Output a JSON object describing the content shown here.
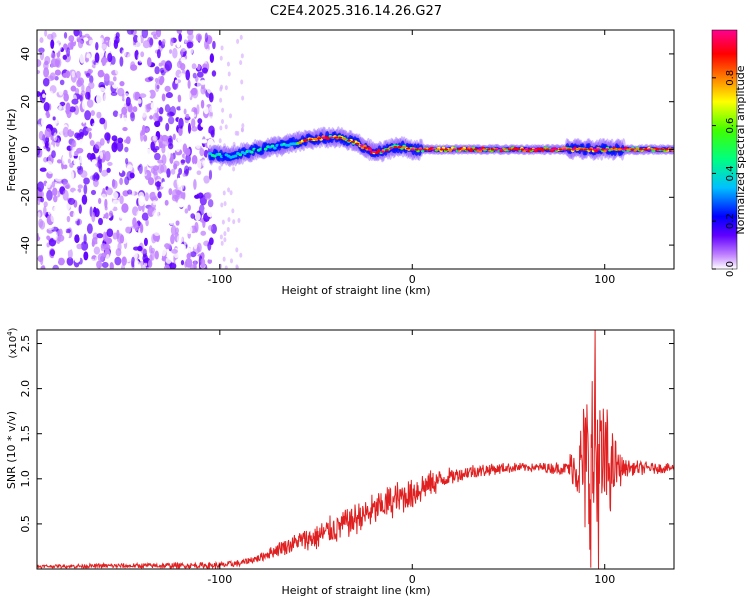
{
  "chart_data": [
    {
      "type": "heatmap",
      "title": "C2E4.2025.316.14.26.G27",
      "xlabel": "Height of straight line (km)",
      "ylabel": "Frequency (Hz)",
      "xlim": [
        -195,
        136
      ],
      "ylim": [
        -50,
        50
      ],
      "xticks": [
        -100,
        0,
        100
      ],
      "xtick_labels": [
        "-100",
        "0",
        "100"
      ],
      "yticks": [
        -40,
        -20,
        0,
        20,
        40
      ],
      "ytick_labels": [
        "-40",
        "-20",
        "0",
        "20",
        "40"
      ],
      "colorbar": {
        "label": "Normalized spectral amplitude",
        "range": [
          0,
          1
        ],
        "ticks": [
          0,
          0.2,
          0.4,
          0.6,
          0.8
        ],
        "tick_labels": [
          "0.0",
          "0.2",
          "0.4",
          "0.6",
          "0.8"
        ],
        "colors": [
          "#ffffff",
          "#c080ff",
          "#6000ff",
          "#0000ff",
          "#00c0ff",
          "#00ff80",
          "#40ff00",
          "#ffff00",
          "#ff8000",
          "#ff0000",
          "#ff0090"
        ]
      },
      "ridge_centerline": {
        "x": [
          -105,
          -95,
          -80,
          -65,
          -55,
          -45,
          -38,
          -30,
          -25,
          -20,
          -15,
          -10,
          -5,
          0,
          20,
          60,
          80,
          90,
          100,
          110,
          136
        ],
        "freq": [
          -2,
          -3,
          0,
          2,
          4,
          5,
          5,
          3,
          1,
          -1,
          -1,
          1,
          1,
          0,
          0,
          0,
          0,
          0,
          0,
          0,
          0
        ]
      },
      "noise_region_x": [
        -195,
        -103
      ]
    },
    {
      "type": "line",
      "xlabel": "Height of straight line (km)",
      "ylabel": "SNR (10 * v/v)",
      "y_scale_label": "(x10",
      "y_scale_exp": "4",
      "xlim": [
        -195,
        136
      ],
      "ylim": [
        0,
        2.65
      ],
      "xticks": [
        -100,
        0,
        100
      ],
      "xtick_labels": [
        "-100",
        "0",
        "100"
      ],
      "yticks": [
        0.5,
        1.0,
        1.5,
        2.0,
        2.5
      ],
      "ytick_labels": [
        "0.5",
        "1.0",
        "1.5",
        "2.0",
        "2.5"
      ],
      "line_color": "#e02020",
      "envelope": {
        "x": [
          -195,
          -100,
          -90,
          -80,
          -70,
          -60,
          -50,
          -40,
          -30,
          -20,
          -10,
          0,
          10,
          20,
          30,
          40,
          50,
          60,
          70,
          80,
          85,
          90,
          95,
          100,
          105,
          110,
          120,
          136
        ],
        "y": [
          0.03,
          0.04,
          0.06,
          0.12,
          0.22,
          0.3,
          0.35,
          0.45,
          0.55,
          0.65,
          0.75,
          0.85,
          0.95,
          1.03,
          1.08,
          1.1,
          1.12,
          1.13,
          1.12,
          1.12,
          1.12,
          1.12,
          1.12,
          1.12,
          1.12,
          1.12,
          1.12,
          1.12
        ]
      },
      "noise_amplitude": {
        "x": [
          -195,
          -100,
          -80,
          -60,
          -40,
          -20,
          0,
          20,
          60,
          80,
          86,
          92,
          95,
          100,
          105,
          110,
          136
        ],
        "amp": [
          0.02,
          0.04,
          0.05,
          0.12,
          0.18,
          0.2,
          0.22,
          0.1,
          0.05,
          0.08,
          0.4,
          1.2,
          1.5,
          0.8,
          0.4,
          0.1,
          0.05
        ]
      },
      "peak": {
        "x": 95,
        "y": 2.65
      }
    }
  ]
}
